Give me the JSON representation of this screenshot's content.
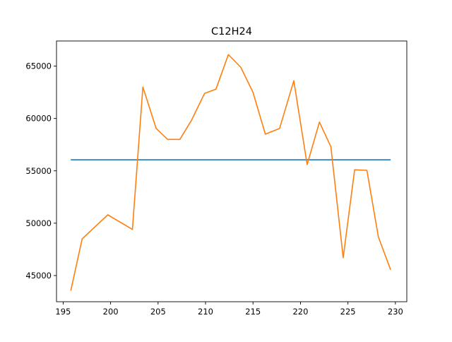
{
  "chart_data": {
    "type": "line",
    "title": "C12H24",
    "xlabel": "",
    "ylabel": "",
    "xlim": [
      194.3,
      231.2
    ],
    "ylim": [
      42500,
      67400
    ],
    "x_ticks": [
      195,
      200,
      205,
      210,
      215,
      220,
      225,
      230
    ],
    "y_ticks": [
      45000,
      50000,
      55000,
      60000,
      65000
    ],
    "grid": false,
    "series": [
      {
        "color": "#1f77b4",
        "x": [
          195.8,
          229.5
        ],
        "y": [
          56050,
          56050
        ]
      },
      {
        "color": "#ff7f0e",
        "x": [
          195.8,
          197.0,
          199.7,
          202.3,
          203.4,
          204.8,
          206.0,
          207.3,
          208.5,
          209.9,
          211.1,
          212.4,
          213.7,
          215.0,
          216.3,
          217.8,
          219.3,
          220.7,
          222.0,
          223.2,
          224.5,
          225.7,
          227.0,
          228.2,
          229.5
        ],
        "y": [
          43550,
          48500,
          50800,
          49400,
          63000,
          59050,
          58000,
          58000,
          59800,
          62400,
          62800,
          66100,
          64900,
          62500,
          58500,
          59050,
          63600,
          55600,
          59650,
          57300,
          46700,
          55100,
          55050,
          48700,
          45550
        ]
      }
    ]
  }
}
